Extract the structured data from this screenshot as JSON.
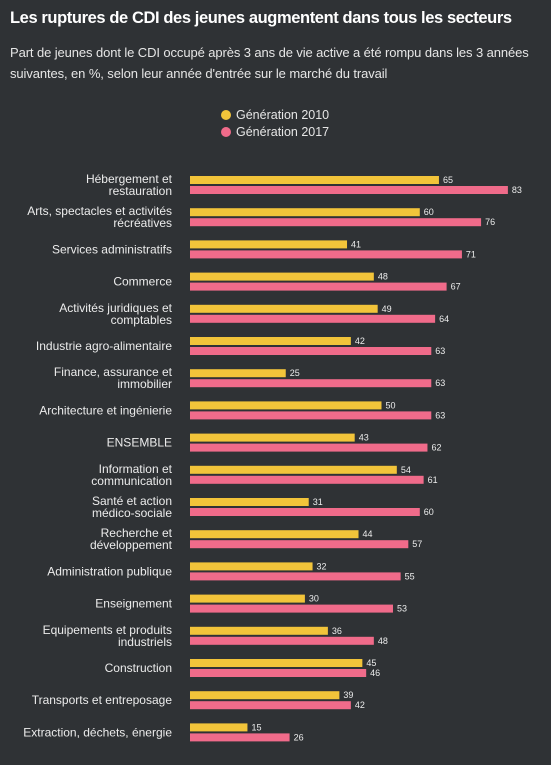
{
  "title": "Les ruptures de CDI des jeunes augmentent dans tous les secteurs",
  "subtitle": "Part de jeunes dont le CDI occupé après 3 ans de vie active a été rompu dans les 3 années suivantes, en %, selon leur année d'entrée sur le marché du travail",
  "colors": {
    "background": "#2f3235",
    "gen2010": "#f2c43a",
    "gen2017": "#f06b8a"
  },
  "legend": [
    {
      "label": "Génération 2010",
      "color": "#f2c43a"
    },
    {
      "label": "Génération 2017",
      "color": "#f06b8a"
    }
  ],
  "chart_data": {
    "type": "bar",
    "orientation": "horizontal",
    "categories": [
      [
        "Hébergement et",
        "restauration"
      ],
      [
        "Arts, spectacles et activités",
        "récréatives"
      ],
      [
        "Services administratifs"
      ],
      [
        "Commerce"
      ],
      [
        "Activités juridiques et",
        "comptables"
      ],
      [
        "Industrie agro-alimentaire"
      ],
      [
        "Finance, assurance et",
        "immobilier"
      ],
      [
        "Architecture et ingénierie"
      ],
      [
        "ENSEMBLE"
      ],
      [
        "Information et",
        "communication"
      ],
      [
        "Santé et action",
        "médico-sociale"
      ],
      [
        "Recherche et",
        "développement"
      ],
      [
        "Administration publique"
      ],
      [
        "Enseignement"
      ],
      [
        "Equipements et produits",
        "industriels"
      ],
      [
        "Construction"
      ],
      [
        "Transports et entreposage"
      ],
      [
        "Extraction, déchets, énergie"
      ]
    ],
    "series": [
      {
        "name": "Génération 2010",
        "values": [
          65,
          60,
          41,
          48,
          49,
          42,
          25,
          50,
          43,
          54,
          31,
          44,
          32,
          30,
          36,
          45,
          39,
          15
        ]
      },
      {
        "name": "Génération 2017",
        "values": [
          83,
          76,
          71,
          67,
          64,
          63,
          63,
          63,
          62,
          61,
          60,
          57,
          55,
          53,
          48,
          46,
          42,
          26
        ]
      }
    ],
    "xlim": [
      0,
      100
    ],
    "grid": false,
    "legend_position": "top-center"
  }
}
